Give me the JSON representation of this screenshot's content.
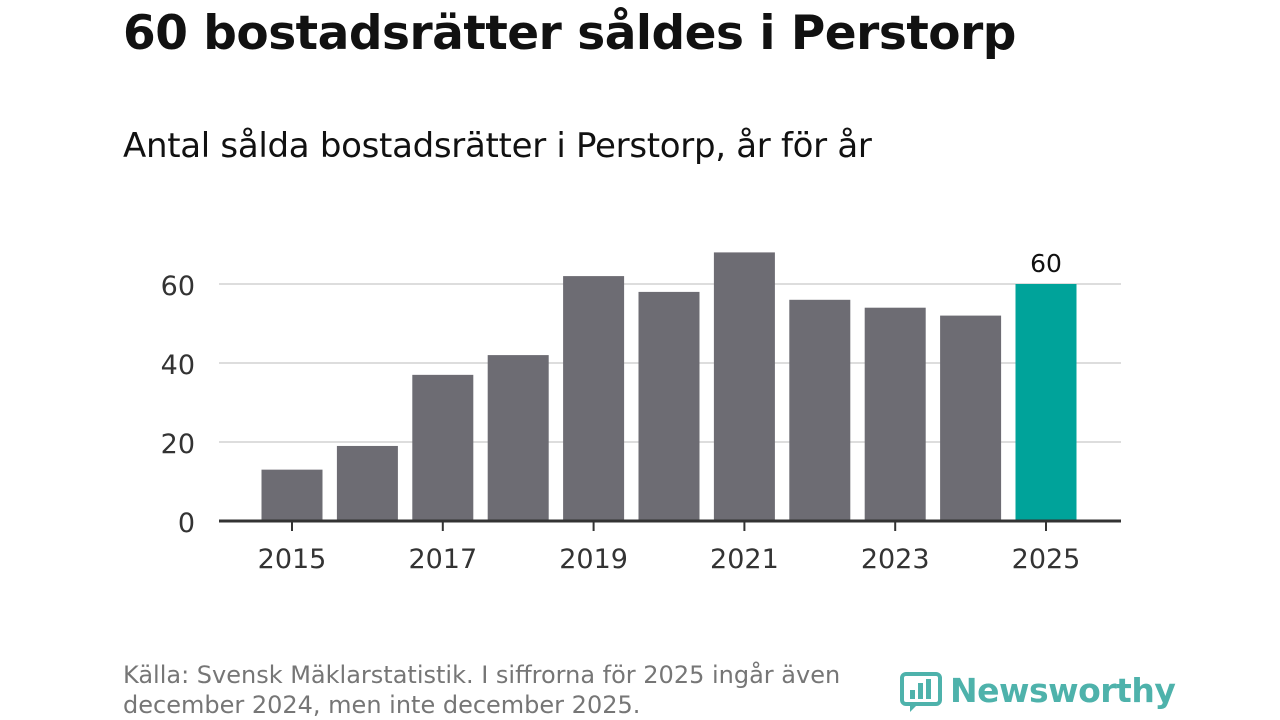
{
  "title": "60 bostadsrätter såldes i Perstorp",
  "chart_data": {
    "type": "bar",
    "title": "Antal sålda bostadsrätter i Perstorp, år för år",
    "categories": [
      "2015",
      "2016",
      "2017",
      "2018",
      "2019",
      "2020",
      "2021",
      "2022",
      "2023",
      "2024",
      "2025"
    ],
    "values": [
      13,
      19,
      37,
      42,
      62,
      58,
      68,
      56,
      54,
      52,
      60
    ],
    "highlight_index": 10,
    "highlight_label": "60",
    "x_tick_labels": [
      "2015",
      "2017",
      "2019",
      "2021",
      "2023",
      "2025"
    ],
    "y_ticks": [
      0,
      20,
      40,
      60
    ],
    "y_tick_labels": [
      "0",
      "20",
      "40",
      "60"
    ],
    "ylim": [
      0,
      70
    ],
    "grid": true,
    "xlabel": "",
    "ylabel": "",
    "colors": {
      "bar": "#6d6c73",
      "highlight": "#00a39a",
      "grid": "#dddddd",
      "axis": "#333333",
      "tick_text": "#333333"
    }
  },
  "source": "Källa: Svensk Mäklarstatistik. I siffrorna för 2025 ingår även december 2024, men inte december 2025.",
  "logo": {
    "text": "Newsworthy",
    "icon": "newsworthy-logo-icon"
  }
}
